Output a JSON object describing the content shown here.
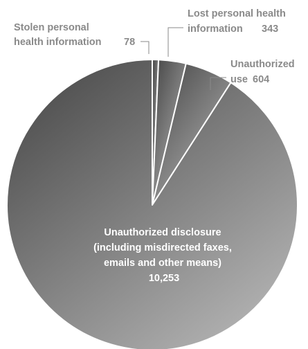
{
  "chart_data": {
    "type": "pie",
    "title": "",
    "slices": [
      {
        "label_lines": [
          "Stolen personal",
          "health information"
        ],
        "value_text": "78",
        "value": 78
      },
      {
        "label_lines": [
          "Lost personal health",
          "information"
        ],
        "value_text": "343",
        "value": 343
      },
      {
        "label_lines": [
          "Unauthorized",
          "use"
        ],
        "value_text": "604",
        "value": 604
      },
      {
        "label_lines": [
          "Unauthorized disclosure",
          "(including misdirected faxes,",
          "emails and other means)"
        ],
        "value_text": "10,253",
        "value": 10253
      }
    ],
    "colors": {
      "slice_light": "#b3b3b3",
      "slice_dark": "#4f4f4f",
      "label_text": "#8a8a8a",
      "inner_label_text": "#ffffff",
      "separator": "#ffffff"
    }
  }
}
